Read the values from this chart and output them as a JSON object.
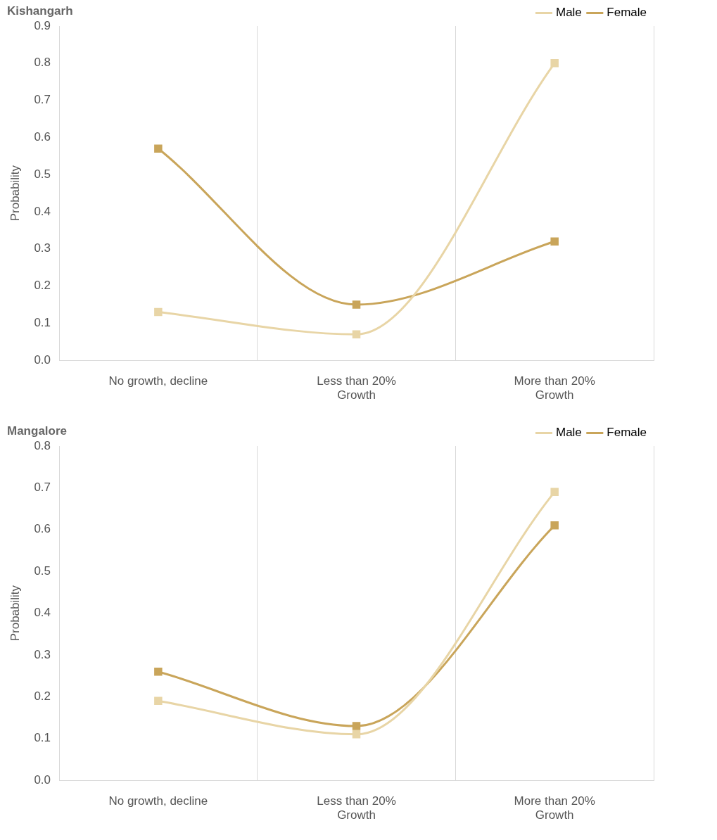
{
  "chart_data": [
    {
      "type": "line",
      "title": "Kishangarh",
      "ylabel": "Probability",
      "categories": [
        "No growth, decline",
        "Less than 20% Growth",
        "More than 20% Growth"
      ],
      "series": [
        {
          "name": "Male",
          "color": "#e8d5a6",
          "values": [
            0.13,
            0.07,
            0.8
          ]
        },
        {
          "name": "Female",
          "color": "#c9a55a",
          "values": [
            0.57,
            0.15,
            0.32
          ]
        }
      ],
      "ylim": [
        0,
        0.9
      ],
      "yticks": [
        {
          "value": 0,
          "label": "0.0"
        },
        0.1,
        0.2,
        0.3,
        0.4,
        0.5,
        0.6,
        0.7,
        0.8,
        0.9
      ],
      "grid": "x",
      "legend": "top right",
      "marker": "square",
      "line_style": "solid"
    },
    {
      "type": "line",
      "title": "Mangalore",
      "ylabel": "Probability",
      "categories": [
        "No growth, decline",
        "Less than 20% Growth",
        "More than 20% Growth"
      ],
      "series": [
        {
          "name": "Male",
          "color": "#e8d5a6",
          "values": [
            0.19,
            0.11,
            0.69
          ]
        },
        {
          "name": "Female",
          "color": "#c9a55a",
          "values": [
            0.26,
            0.13,
            0.61
          ]
        }
      ],
      "ylim": [
        0,
        0.8
      ],
      "yticks": [
        {
          "value": 0,
          "label": "0.0"
        },
        0.1,
        0.2,
        0.3,
        0.4,
        0.5,
        0.6,
        0.7,
        0.8
      ],
      "grid": "x",
      "legend": "top right",
      "marker": "square",
      "line_style": "solid"
    }
  ]
}
